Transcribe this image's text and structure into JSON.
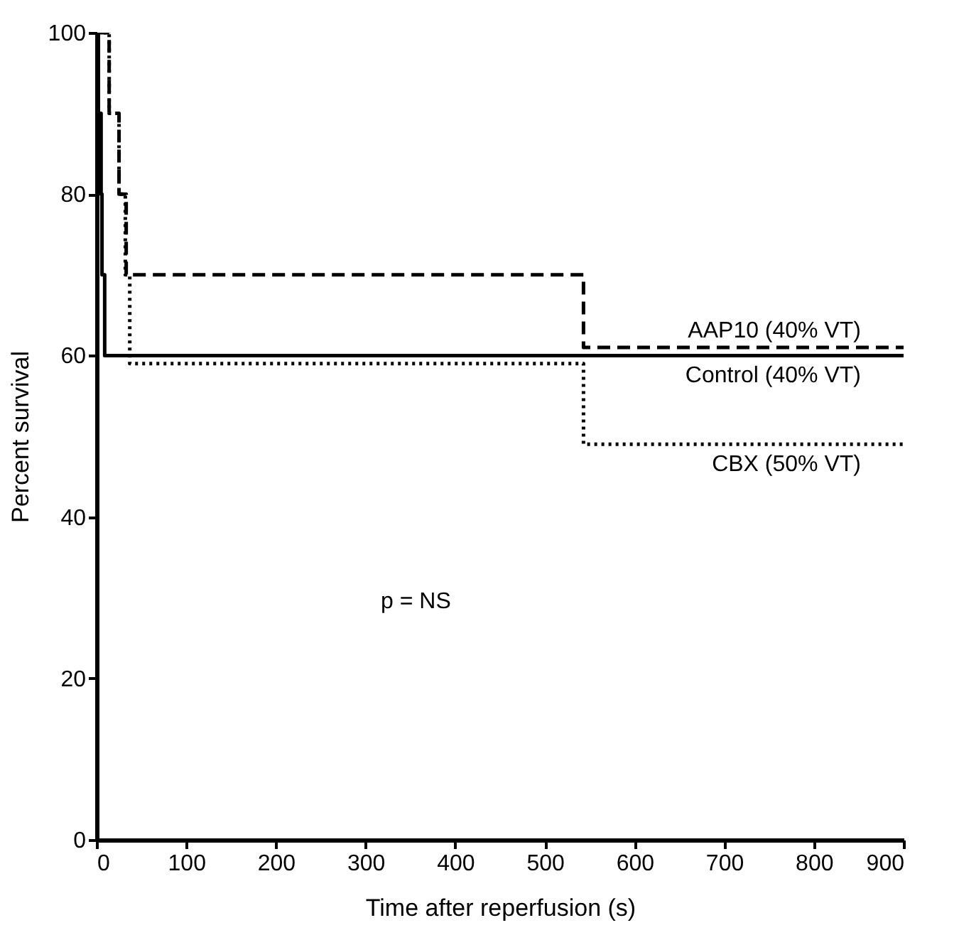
{
  "chart_data": {
    "type": "step",
    "xlabel": "Time after reperfusion (s)",
    "ylabel": "Percent survival",
    "xlim": [
      0,
      900
    ],
    "xticks": [
      0,
      100,
      200,
      300,
      400,
      500,
      600,
      700,
      800,
      900
    ],
    "ylim": [
      0,
      100
    ],
    "yticks": [
      0,
      20,
      40,
      60,
      80,
      100
    ],
    "grid": false,
    "legend": false,
    "marker": "none",
    "series": [
      {
        "name": "AAP10 (40% VT)",
        "color": "#000000",
        "line_style": "dashed",
        "x": [
          0,
          14,
          14,
          25,
          25,
          33,
          33,
          543,
          543,
          900
        ],
        "values": [
          100,
          100,
          90,
          90,
          80,
          80,
          70,
          70,
          61,
          61
        ]
      },
      {
        "name": "Control (40% VT)",
        "color": "#000000",
        "line_style": "solid",
        "x": [
          0,
          2,
          2,
          5,
          5,
          6,
          6,
          9,
          9,
          900
        ],
        "values": [
          100,
          100,
          90,
          90,
          80,
          80,
          70,
          70,
          60,
          60
        ]
      },
      {
        "name": "CBX (50% VT)",
        "color": "#000000",
        "line_style": "dotted",
        "x": [
          0,
          14,
          14,
          25,
          25,
          32,
          32,
          37,
          37,
          543,
          543,
          900
        ],
        "values": [
          100,
          100,
          90,
          90,
          80,
          80,
          70,
          70,
          59,
          59,
          49,
          49
        ]
      }
    ],
    "annotations": [
      "p = NS"
    ]
  }
}
